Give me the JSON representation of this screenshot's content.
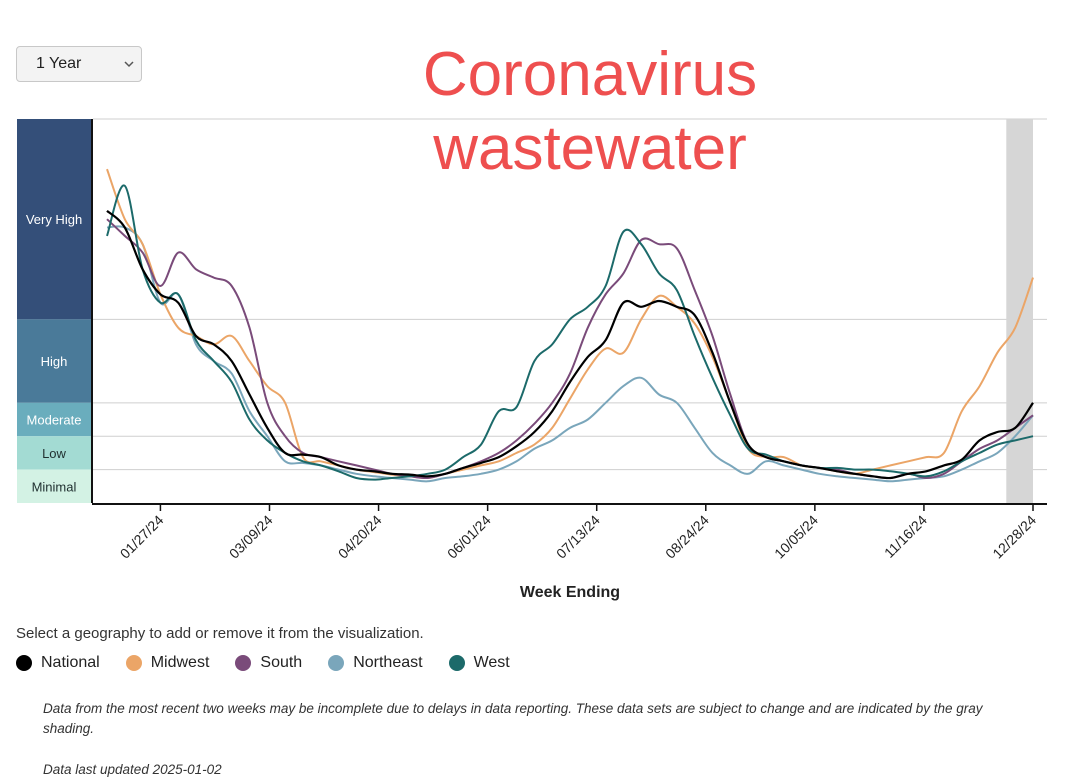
{
  "range_select": {
    "value": "1 Year"
  },
  "title": {
    "line1": "Coronavirus",
    "line2": "wastewater"
  },
  "chart_data": {
    "type": "line",
    "xlabel": "Week Ending",
    "ylabel": "",
    "x_tick_labels": [
      "01/27/24",
      "03/09/24",
      "04/20/24",
      "06/01/24",
      "07/13/24",
      "08/24/24",
      "10/05/24",
      "11/16/24",
      "12/28/24"
    ],
    "x_week_index_range": [
      0,
      52
    ],
    "shaded_weeks": {
      "from": 50.5,
      "to": 52,
      "color": "#d6d6d6"
    },
    "levels": [
      {
        "label": "Very High",
        "from": 4.6,
        "to": 7,
        "color": "#344f79"
      },
      {
        "label": "High",
        "from": 3.6,
        "to": 4.6,
        "color": "#4a7a99"
      },
      {
        "label": "Moderate",
        "from": 3.2,
        "to": 3.6,
        "color": "#6aadbd"
      },
      {
        "label": "Low",
        "from": 2.8,
        "to": 3.2,
        "color": "#a3dbd3"
      },
      {
        "label": "Minimal",
        "from": 2.4,
        "to": 2.8,
        "color": "#d3f2e4"
      }
    ],
    "series": [
      {
        "name": "National",
        "color": "#000000",
        "values": [
          5.9,
          5.7,
          5.2,
          4.9,
          4.8,
          4.4,
          4.3,
          4.1,
          3.7,
          3.3,
          3.0,
          2.98,
          2.95,
          2.85,
          2.8,
          2.78,
          2.75,
          2.74,
          2.72,
          2.75,
          2.82,
          2.88,
          2.95,
          3.08,
          3.25,
          3.5,
          3.85,
          4.15,
          4.35,
          4.8,
          4.75,
          4.82,
          4.75,
          4.65,
          4.2,
          3.6,
          3.1,
          2.95,
          2.9,
          2.85,
          2.82,
          2.78,
          2.75,
          2.72,
          2.7,
          2.75,
          2.78,
          2.85,
          2.92,
          3.15,
          3.25,
          3.3,
          3.6
        ]
      },
      {
        "name": "Midwest",
        "color": "#eba567",
        "values": [
          6.4,
          5.8,
          5.5,
          4.9,
          4.5,
          4.4,
          4.3,
          4.4,
          4.1,
          3.8,
          3.6,
          2.95,
          2.9,
          2.85,
          2.8,
          2.77,
          2.74,
          2.72,
          2.7,
          2.75,
          2.8,
          2.85,
          2.9,
          3.0,
          3.1,
          3.3,
          3.65,
          4.0,
          4.25,
          4.2,
          4.6,
          4.88,
          4.75,
          4.55,
          4.15,
          3.6,
          3.05,
          2.95,
          2.95,
          2.85,
          2.82,
          2.78,
          2.75,
          2.8,
          2.85,
          2.9,
          2.95,
          3.0,
          3.5,
          3.8,
          4.2,
          4.5,
          5.1
        ]
      },
      {
        "name": "South",
        "color": "#7a4b7a",
        "values": [
          5.8,
          5.6,
          5.4,
          5.0,
          5.4,
          5.2,
          5.1,
          5.0,
          4.5,
          3.6,
          3.2,
          3.0,
          2.95,
          2.9,
          2.85,
          2.8,
          2.75,
          2.72,
          2.7,
          2.75,
          2.82,
          2.9,
          3.0,
          3.15,
          3.35,
          3.6,
          3.95,
          4.5,
          4.9,
          5.15,
          5.55,
          5.5,
          5.45,
          4.95,
          4.4,
          3.7,
          3.1,
          2.95,
          2.9,
          2.85,
          2.82,
          2.8,
          2.75,
          2.72,
          2.7,
          2.75,
          2.7,
          2.75,
          2.9,
          3.05,
          3.15,
          3.3,
          3.45
        ]
      },
      {
        "name": "Northeast",
        "color": "#7aa6bb",
        "values": [
          5.7,
          5.7,
          5.5,
          4.8,
          4.9,
          4.3,
          4.1,
          3.95,
          3.5,
          3.2,
          2.9,
          2.88,
          2.85,
          2.8,
          2.75,
          2.72,
          2.7,
          2.68,
          2.66,
          2.7,
          2.72,
          2.75,
          2.8,
          2.9,
          3.05,
          3.15,
          3.3,
          3.4,
          3.6,
          3.8,
          3.9,
          3.7,
          3.6,
          3.3,
          3.0,
          2.85,
          2.75,
          2.9,
          2.85,
          2.8,
          2.75,
          2.72,
          2.7,
          2.68,
          2.66,
          2.68,
          2.7,
          2.72,
          2.8,
          2.9,
          3.0,
          3.2,
          3.45
        ]
      },
      {
        "name": "West",
        "color": "#1c6a6a",
        "values": [
          5.6,
          6.2,
          5.2,
          4.8,
          4.9,
          4.35,
          4.1,
          3.85,
          3.4,
          3.15,
          3.0,
          2.9,
          2.85,
          2.78,
          2.7,
          2.68,
          2.7,
          2.72,
          2.75,
          2.8,
          2.95,
          3.1,
          3.5,
          3.55,
          4.1,
          4.3,
          4.6,
          4.75,
          5.0,
          5.65,
          5.5,
          5.15,
          4.95,
          4.4,
          3.9,
          3.45,
          3.05,
          2.98,
          2.9,
          2.85,
          2.82,
          2.82,
          2.8,
          2.8,
          2.78,
          2.75,
          2.72,
          2.78,
          2.9,
          3.0,
          3.1,
          3.15,
          3.2
        ]
      }
    ]
  },
  "geo_prompt": "Select a geography to add or remove it from the visualization.",
  "legend": [
    {
      "label": "National",
      "color": "#000000"
    },
    {
      "label": "Midwest",
      "color": "#eba567"
    },
    {
      "label": "South",
      "color": "#7a4b7a"
    },
    {
      "label": "Northeast",
      "color": "#7aa6bb"
    },
    {
      "label": "West",
      "color": "#1c6a6a"
    }
  ],
  "notes": {
    "incomplete": "Data from the most recent two weeks may be incomplete due to delays in data reporting. These data sets are subject to change and are indicated by the gray shading.",
    "updated": "Data last updated 2025-01-02"
  }
}
